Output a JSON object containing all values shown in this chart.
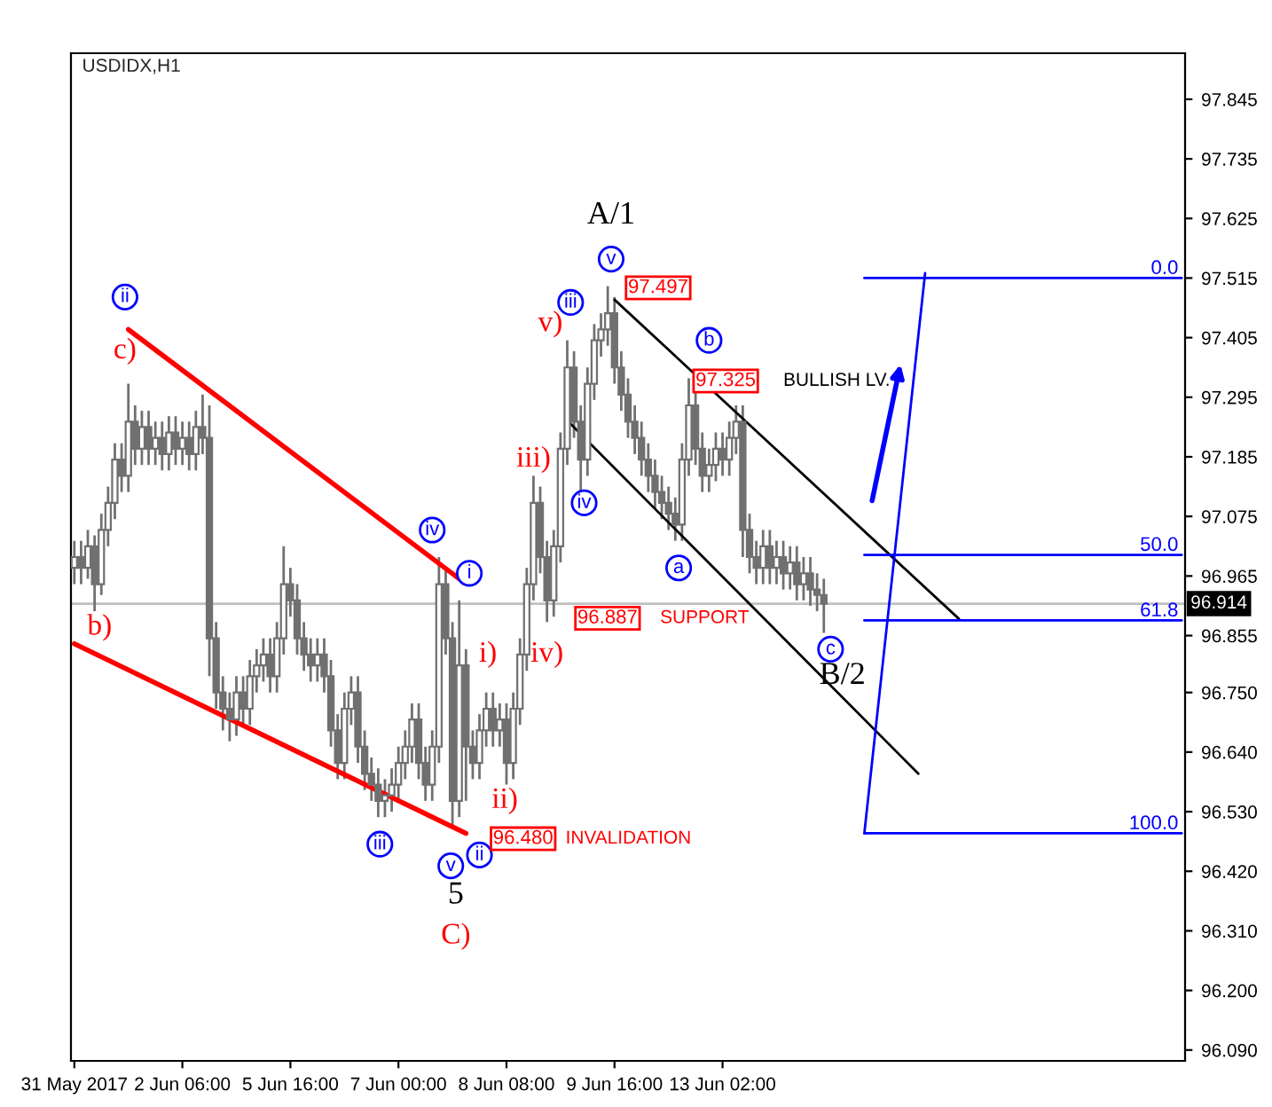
{
  "chart_data": {
    "type": "candlestick",
    "title": "USDIDX,H1",
    "color": "#707070",
    "categories": [
      "31 May 2017",
      null,
      null,
      null,
      null,
      null,
      null,
      null,
      null,
      null,
      null,
      null,
      null,
      null,
      null,
      null,
      "2 Jun 06:00",
      null,
      null,
      null,
      null,
      null,
      null,
      null,
      null,
      null,
      null,
      null,
      null,
      null,
      null,
      null,
      "5 Jun 16:00",
      null,
      null,
      null,
      null,
      null,
      null,
      null,
      null,
      null,
      null,
      null,
      null,
      null,
      null,
      null,
      "7 Jun 00:00",
      null,
      null,
      null,
      null,
      null,
      null,
      null,
      null,
      null,
      null,
      null,
      null,
      null,
      null,
      null,
      "8 Jun 08:00",
      null,
      null,
      null,
      null,
      null,
      null,
      null,
      null,
      null,
      null,
      null,
      null,
      null,
      null,
      null,
      "9 Jun 16:00",
      null,
      null,
      null,
      null,
      null,
      null,
      null,
      null,
      null,
      null,
      null,
      null,
      null,
      null,
      null,
      "13 Jun 02:00",
      null,
      null,
      null,
      null,
      null,
      null,
      null,
      null,
      null,
      null,
      null,
      null,
      null,
      null,
      null,
      null,
      null,
      null,
      null,
      null,
      null,
      null,
      null,
      null,
      null,
      null,
      null,
      null,
      null,
      null,
      null,
      null,
      null,
      null,
      null,
      null,
      null,
      null,
      null,
      null,
      null,
      null,
      null,
      null,
      null,
      null,
      null,
      null,
      null,
      null,
      null,
      null,
      null,
      null,
      null,
      null,
      null,
      null,
      null,
      null,
      null,
      null,
      null,
      null,
      null,
      null,
      null,
      null
    ],
    "ohlc": [
      [
        96.98,
        97.03,
        96.95,
        97.0
      ],
      [
        97.0,
        97.03,
        96.95,
        96.98
      ],
      [
        96.98,
        97.05,
        96.96,
        97.02
      ],
      [
        97.02,
        97.04,
        96.9,
        96.95
      ],
      [
        96.95,
        97.08,
        96.93,
        97.05
      ],
      [
        97.05,
        97.13,
        97.02,
        97.1
      ],
      [
        97.1,
        97.21,
        97.07,
        97.18
      ],
      [
        97.18,
        97.21,
        97.12,
        97.15
      ],
      [
        97.15,
        97.32,
        97.12,
        97.25
      ],
      [
        97.25,
        97.28,
        97.17,
        97.2
      ],
      [
        97.2,
        97.27,
        97.17,
        97.24
      ],
      [
        97.24,
        97.27,
        97.17,
        97.2
      ],
      [
        97.2,
        97.25,
        97.17,
        97.22
      ],
      [
        97.22,
        97.25,
        97.16,
        97.19
      ],
      [
        97.19,
        97.26,
        97.16,
        97.23
      ],
      [
        97.23,
        97.26,
        97.17,
        97.2
      ],
      [
        97.2,
        97.25,
        97.17,
        97.22
      ],
      [
        97.22,
        97.25,
        97.16,
        97.19
      ],
      [
        97.19,
        97.27,
        97.16,
        97.24
      ],
      [
        97.24,
        97.3,
        97.19,
        97.22
      ],
      [
        97.22,
        97.28,
        96.78,
        96.85
      ],
      [
        96.85,
        96.88,
        96.72,
        96.75
      ],
      [
        96.75,
        96.78,
        96.68,
        96.72
      ],
      [
        96.72,
        96.75,
        96.66,
        96.7
      ],
      [
        96.7,
        96.78,
        96.67,
        96.75
      ],
      [
        96.75,
        96.78,
        96.69,
        96.72
      ],
      [
        96.72,
        96.81,
        96.69,
        96.78
      ],
      [
        96.78,
        96.83,
        96.75,
        96.8
      ],
      [
        96.8,
        96.85,
        96.77,
        96.82
      ],
      [
        96.82,
        96.85,
        96.75,
        96.78
      ],
      [
        96.78,
        96.88,
        96.75,
        96.85
      ],
      [
        96.85,
        97.02,
        96.82,
        96.95
      ],
      [
        96.95,
        96.98,
        96.89,
        96.92
      ],
      [
        96.92,
        96.95,
        96.82,
        96.85
      ],
      [
        96.85,
        96.88,
        96.79,
        96.82
      ],
      [
        96.82,
        96.85,
        96.77,
        96.8
      ],
      [
        96.8,
        96.85,
        96.77,
        96.82
      ],
      [
        96.82,
        96.85,
        96.75,
        96.78
      ],
      [
        96.78,
        96.81,
        96.65,
        96.68
      ],
      [
        96.68,
        96.71,
        96.59,
        96.62
      ],
      [
        96.62,
        96.75,
        96.59,
        96.72
      ],
      [
        96.72,
        96.78,
        96.69,
        96.75
      ],
      [
        96.75,
        96.78,
        96.62,
        96.65
      ],
      [
        96.65,
        96.68,
        96.57,
        96.6
      ],
      [
        96.6,
        96.63,
        96.55,
        96.58
      ],
      [
        96.58,
        96.61,
        96.52,
        96.55
      ],
      [
        96.55,
        96.59,
        96.52,
        96.56
      ],
      [
        96.56,
        96.61,
        96.53,
        96.58
      ],
      [
        96.58,
        96.65,
        96.55,
        96.62
      ],
      [
        96.62,
        96.68,
        96.59,
        96.65
      ],
      [
        96.65,
        96.73,
        96.62,
        96.7
      ],
      [
        96.7,
        96.73,
        96.59,
        96.62
      ],
      [
        96.62,
        96.65,
        96.55,
        96.58
      ],
      [
        96.58,
        96.68,
        96.55,
        96.65
      ],
      [
        96.65,
        97.0,
        96.62,
        96.95
      ],
      [
        96.95,
        96.98,
        96.82,
        96.85
      ],
      [
        96.85,
        96.88,
        96.5,
        96.55
      ],
      [
        96.55,
        96.92,
        96.52,
        96.8
      ],
      [
        96.8,
        96.83,
        96.55,
        96.65
      ],
      [
        96.65,
        96.68,
        96.59,
        96.62
      ],
      [
        96.62,
        96.71,
        96.59,
        96.68
      ],
      [
        96.68,
        96.75,
        96.65,
        96.72
      ],
      [
        96.72,
        96.75,
        96.65,
        96.68
      ],
      [
        96.68,
        96.73,
        96.65,
        96.7
      ],
      [
        96.7,
        96.73,
        96.58,
        96.62
      ],
      [
        96.62,
        96.75,
        96.59,
        96.72
      ],
      [
        96.72,
        96.85,
        96.69,
        96.82
      ],
      [
        96.82,
        96.98,
        96.79,
        96.95
      ],
      [
        96.95,
        97.15,
        96.92,
        97.1
      ],
      [
        97.1,
        97.13,
        96.97,
        97.0
      ],
      [
        97.0,
        97.03,
        96.88,
        96.92
      ],
      [
        96.92,
        97.05,
        96.89,
        97.02
      ],
      [
        97.02,
        97.23,
        96.99,
        97.2
      ],
      [
        97.2,
        97.4,
        97.17,
        97.35
      ],
      [
        97.35,
        97.38,
        97.22,
        97.25
      ],
      [
        97.25,
        97.28,
        97.12,
        97.18
      ],
      [
        97.18,
        97.35,
        97.15,
        97.32
      ],
      [
        97.32,
        97.43,
        97.29,
        97.4
      ],
      [
        97.4,
        97.45,
        97.37,
        97.42
      ],
      [
        97.42,
        97.5,
        97.39,
        97.45
      ],
      [
        97.45,
        97.48,
        97.32,
        97.35
      ],
      [
        97.35,
        97.38,
        97.27,
        97.3
      ],
      [
        97.3,
        97.33,
        97.22,
        97.25
      ],
      [
        97.25,
        97.28,
        97.19,
        97.22
      ],
      [
        97.22,
        97.25,
        97.15,
        97.18
      ],
      [
        97.18,
        97.21,
        97.12,
        97.15
      ],
      [
        97.15,
        97.18,
        97.09,
        97.12
      ],
      [
        97.12,
        97.15,
        97.07,
        97.1
      ],
      [
        97.1,
        97.13,
        97.05,
        97.08
      ],
      [
        97.08,
        97.11,
        97.03,
        97.06
      ],
      [
        97.06,
        97.21,
        97.03,
        97.18
      ],
      [
        97.18,
        97.33,
        97.15,
        97.28
      ],
      [
        97.28,
        97.31,
        97.17,
        97.2
      ],
      [
        97.2,
        97.23,
        97.12,
        97.15
      ],
      [
        97.15,
        97.2,
        97.12,
        97.17
      ],
      [
        97.17,
        97.23,
        97.14,
        97.2
      ],
      [
        97.2,
        97.23,
        97.15,
        97.18
      ],
      [
        97.18,
        97.25,
        97.15,
        97.22
      ],
      [
        97.22,
        97.28,
        97.19,
        97.25
      ],
      [
        97.25,
        97.28,
        97.0,
        97.05
      ],
      [
        97.05,
        97.08,
        96.97,
        97.0
      ],
      [
        97.0,
        97.03,
        96.95,
        96.98
      ],
      [
        96.98,
        97.05,
        96.95,
        97.02
      ],
      [
        97.02,
        97.05,
        96.95,
        96.98
      ],
      [
        96.98,
        97.03,
        96.95,
        97.0
      ],
      [
        97.0,
        97.03,
        96.94,
        96.97
      ],
      [
        96.97,
        97.02,
        96.94,
        96.99
      ],
      [
        96.99,
        97.02,
        96.92,
        96.95
      ],
      [
        96.95,
        97.0,
        96.92,
        96.97
      ],
      [
        96.97,
        97.0,
        96.91,
        96.94
      ],
      [
        96.94,
        96.97,
        96.9,
        96.93
      ],
      [
        96.93,
        96.96,
        96.86,
        96.914
      ],
      null,
      null,
      null,
      null,
      null,
      null,
      null,
      null,
      null,
      null,
      null,
      null,
      null,
      null,
      null,
      null,
      null,
      null,
      null,
      null,
      null,
      null,
      null,
      null,
      null,
      null,
      null,
      null,
      null,
      null,
      null,
      null,
      null,
      null,
      null,
      null,
      null,
      null,
      null,
      null,
      null,
      null,
      null,
      null,
      null,
      null,
      null,
      null,
      null,
      null,
      null,
      null,
      null
    ],
    "ylim": [
      96.07,
      97.93
    ],
    "yticks": [
      97.845,
      97.735,
      97.625,
      97.515,
      97.405,
      97.295,
      97.185,
      97.075,
      96.965,
      96.855,
      {
        "value": 96.75,
        "label": "96.750"
      },
      {
        "value": 96.64,
        "label": "96.640"
      },
      {
        "value": 96.53,
        "label": "96.530"
      },
      {
        "value": 96.42,
        "label": "96.420"
      },
      {
        "value": 96.31,
        "label": "96.310"
      },
      {
        "value": 96.2,
        "label": "96.200"
      },
      {
        "value": 96.09,
        "label": "96.090"
      }
    ],
    "ref_lines": [
      {
        "axis": "y",
        "value": 96.914,
        "label": "96.914",
        "color": "#c0c0c0"
      }
    ],
    "series": [
      {
        "type": "line",
        "color": "#ff0000",
        "values": [
          null,
          null,
          null,
          null,
          null,
          null,
          null,
          null,
          97.42,
          null,
          null,
          null,
          null,
          null,
          null,
          null,
          null,
          null,
          null,
          null,
          null,
          null,
          null,
          null,
          null,
          null,
          null,
          null,
          null,
          null,
          null,
          null,
          null,
          null,
          null,
          null,
          null,
          null,
          null,
          null,
          null,
          null,
          null,
          null,
          null,
          null,
          null,
          null,
          null,
          null,
          null,
          null,
          null,
          null,
          null,
          null,
          null,
          96.96,
          null,
          null,
          null,
          null,
          null,
          null,
          null,
          null,
          null,
          null,
          null,
          null,
          null,
          null,
          null,
          null,
          null,
          null,
          null,
          null,
          null,
          null,
          null,
          null,
          null,
          null,
          null,
          null,
          null,
          null,
          null,
          null,
          null,
          null,
          null,
          null,
          null,
          null,
          null,
          null,
          null,
          null,
          null,
          null,
          null,
          null,
          null,
          null,
          null,
          null,
          null,
          null,
          null,
          null,
          null,
          null,
          null,
          null,
          null,
          null,
          null,
          null,
          null,
          null,
          null,
          null,
          null,
          null,
          null,
          null,
          null,
          null,
          null,
          null,
          null,
          null,
          null,
          null,
          null,
          null,
          null,
          null,
          null,
          null,
          null,
          null,
          null,
          null,
          null,
          null,
          null,
          null,
          null,
          null,
          null,
          null,
          null,
          null,
          null,
          null,
          null,
          null,
          null,
          null,
          null,
          null,
          null
        ]
      },
      {
        "type": "line",
        "color": "#ff0000",
        "values": [
          96.84,
          null,
          null,
          null,
          null,
          null,
          null,
          null,
          null,
          null,
          null,
          null,
          null,
          null,
          null,
          null,
          null,
          null,
          null,
          null,
          null,
          null,
          null,
          null,
          null,
          null,
          null,
          null,
          null,
          null,
          null,
          null,
          null,
          null,
          null,
          null,
          null,
          null,
          null,
          null,
          null,
          null,
          null,
          null,
          null,
          null,
          null,
          null,
          null,
          null,
          null,
          null,
          null,
          null,
          null,
          null,
          null,
          null,
          96.49,
          null,
          null,
          null,
          null,
          null,
          null,
          null,
          null,
          null,
          null,
          null,
          null,
          null,
          null,
          null,
          null,
          null,
          null,
          null,
          null,
          null,
          null,
          null,
          null,
          null,
          null,
          null,
          null,
          null,
          null,
          null,
          null,
          null,
          null,
          null,
          null,
          null,
          null,
          null,
          null,
          null,
          null,
          null,
          null,
          null,
          null,
          null,
          null,
          null,
          null,
          null,
          null,
          null,
          null,
          null,
          null,
          null,
          null,
          null,
          null,
          null,
          null,
          null,
          null,
          null,
          null,
          null,
          null,
          null,
          null,
          null,
          null,
          null,
          null,
          null,
          null,
          null,
          null,
          null,
          null,
          null,
          null,
          null,
          null,
          null,
          null,
          null,
          null,
          null,
          null,
          null,
          null,
          null,
          null,
          null,
          null,
          null,
          null,
          null,
          null,
          null,
          null,
          null,
          null,
          null,
          null
        ]
      },
      {
        "type": "line",
        "color": "#000000",
        "values": [
          null,
          null,
          null,
          null,
          null,
          null,
          null,
          null,
          null,
          null,
          null,
          null,
          null,
          null,
          null,
          null,
          null,
          null,
          null,
          null,
          null,
          null,
          null,
          null,
          null,
          null,
          null,
          null,
          null,
          null,
          null,
          null,
          null,
          null,
          null,
          null,
          null,
          null,
          null,
          null,
          null,
          null,
          null,
          null,
          null,
          null,
          null,
          null,
          null,
          null,
          null,
          null,
          null,
          null,
          null,
          null,
          null,
          null,
          null,
          null,
          null,
          null,
          null,
          null,
          null,
          null,
          null,
          null,
          null,
          null,
          null,
          null,
          null,
          null,
          null,
          null,
          null,
          null,
          null,
          null,
          97.475,
          null,
          null,
          null,
          null,
          null,
          null,
          null,
          null,
          null,
          null,
          null,
          null,
          null,
          null,
          null,
          null,
          null,
          null,
          null,
          null,
          null,
          null,
          null,
          null,
          null,
          null,
          null,
          null,
          null,
          null,
          null,
          null,
          null,
          null,
          null,
          null,
          null,
          null,
          null,
          null,
          null,
          null,
          null,
          null,
          null,
          null,
          null,
          null,
          null,
          null,
          96.886,
          null,
          null,
          null,
          null,
          null,
          null,
          null,
          null,
          null,
          null,
          null,
          null,
          null,
          null,
          null,
          null,
          null,
          null,
          null,
          null,
          null,
          null,
          null,
          null,
          null,
          null,
          null,
          null,
          null,
          null,
          null,
          null,
          null
        ]
      },
      {
        "type": "line",
        "color": "#000000",
        "values": [
          null,
          null,
          null,
          null,
          null,
          null,
          null,
          null,
          null,
          null,
          null,
          null,
          null,
          null,
          null,
          null,
          null,
          null,
          null,
          null,
          null,
          null,
          null,
          null,
          null,
          null,
          null,
          null,
          null,
          null,
          null,
          null,
          null,
          null,
          null,
          null,
          null,
          null,
          null,
          null,
          null,
          null,
          null,
          null,
          null,
          null,
          null,
          null,
          null,
          null,
          null,
          null,
          null,
          null,
          null,
          null,
          null,
          null,
          null,
          null,
          null,
          null,
          null,
          null,
          null,
          null,
          null,
          null,
          null,
          null,
          null,
          null,
          null,
          97.252,
          null,
          null,
          null,
          null,
          null,
          null,
          null,
          null,
          null,
          null,
          null,
          null,
          null,
          null,
          null,
          null,
          null,
          null,
          null,
          null,
          null,
          null,
          null,
          null,
          null,
          null,
          null,
          null,
          null,
          null,
          null,
          null,
          null,
          null,
          null,
          null,
          null,
          null,
          null,
          null,
          null,
          null,
          null,
          null,
          null,
          null,
          null,
          null,
          null,
          null,
          null,
          96.6,
          null,
          null,
          null,
          null,
          null,
          null,
          null,
          null,
          null,
          null,
          null,
          null,
          null,
          null,
          null,
          null,
          null,
          null,
          null,
          null,
          null,
          null,
          null,
          null,
          null,
          null,
          null,
          null,
          null,
          null,
          null,
          null,
          null,
          null,
          null,
          null,
          null,
          null,
          null
        ]
      },
      {
        "type": "line",
        "color": "#0000ff",
        "values": [
          null,
          null,
          null,
          null,
          null,
          null,
          null,
          null,
          null,
          null,
          null,
          null,
          null,
          null,
          null,
          null,
          null,
          null,
          null,
          null,
          null,
          null,
          null,
          null,
          null,
          null,
          null,
          null,
          null,
          null,
          null,
          null,
          null,
          null,
          null,
          null,
          null,
          null,
          null,
          null,
          null,
          null,
          null,
          null,
          null,
          null,
          null,
          null,
          null,
          null,
          null,
          null,
          null,
          null,
          null,
          null,
          null,
          null,
          null,
          null,
          null,
          null,
          null,
          null,
          null,
          null,
          null,
          null,
          null,
          null,
          null,
          null,
          null,
          null,
          null,
          null,
          null,
          null,
          null,
          null,
          null,
          null,
          null,
          null,
          null,
          null,
          null,
          null,
          null,
          null,
          null,
          null,
          null,
          null,
          null,
          null,
          null,
          null,
          null,
          null,
          null,
          null,
          null,
          null,
          null,
          null,
          null,
          null,
          null,
          null,
          null,
          null,
          null,
          null,
          null,
          null,
          null,
          96.49,
          null,
          null,
          null,
          null,
          null,
          null,
          null,
          null,
          97.524,
          null,
          null,
          null,
          null,
          null,
          null,
          null,
          null,
          null,
          null,
          null,
          null,
          null,
          null,
          null,
          null,
          null,
          null,
          null,
          null,
          null,
          null,
          null,
          null,
          null,
          null,
          null,
          null,
          null,
          null,
          null,
          null,
          null,
          null,
          null,
          null,
          null,
          null
        ]
      },
      {
        "type": "line",
        "color": "#0000ff",
        "name": "0.0",
        "values": [
          null,
          null,
          null,
          null,
          null,
          null,
          null,
          null,
          null,
          null,
          null,
          null,
          null,
          null,
          null,
          null,
          null,
          null,
          null,
          null,
          null,
          null,
          null,
          null,
          null,
          null,
          null,
          null,
          null,
          null,
          null,
          null,
          null,
          null,
          null,
          null,
          null,
          null,
          null,
          null,
          null,
          null,
          null,
          null,
          null,
          null,
          null,
          null,
          null,
          null,
          null,
          null,
          null,
          null,
          null,
          null,
          null,
          null,
          null,
          null,
          null,
          null,
          null,
          null,
          null,
          null,
          null,
          null,
          null,
          null,
          null,
          null,
          null,
          null,
          null,
          null,
          null,
          null,
          null,
          null,
          null,
          null,
          null,
          null,
          null,
          null,
          null,
          null,
          null,
          null,
          null,
          null,
          null,
          null,
          null,
          null,
          null,
          null,
          null,
          null,
          null,
          null,
          null,
          null,
          null,
          null,
          null,
          null,
          null,
          null,
          null,
          null,
          null,
          null,
          null,
          null,
          null,
          97.515,
          null,
          null,
          null,
          null,
          null,
          null,
          null,
          null,
          null,
          null,
          null,
          null,
          null,
          null,
          null,
          null,
          null,
          null,
          null,
          null,
          null,
          null,
          null,
          null,
          null,
          null,
          null,
          null,
          null,
          null,
          null,
          null,
          null,
          null,
          null,
          null,
          null,
          null,
          null,
          null,
          null,
          null,
          null,
          null,
          null,
          null,
          97.515
        ]
      },
      {
        "type": "line",
        "color": "#0000ff",
        "name": "50.0",
        "values": [
          null,
          null,
          null,
          null,
          null,
          null,
          null,
          null,
          null,
          null,
          null,
          null,
          null,
          null,
          null,
          null,
          null,
          null,
          null,
          null,
          null,
          null,
          null,
          null,
          null,
          null,
          null,
          null,
          null,
          null,
          null,
          null,
          null,
          null,
          null,
          null,
          null,
          null,
          null,
          null,
          null,
          null,
          null,
          null,
          null,
          null,
          null,
          null,
          null,
          null,
          null,
          null,
          null,
          null,
          null,
          null,
          null,
          null,
          null,
          null,
          null,
          null,
          null,
          null,
          null,
          null,
          null,
          null,
          null,
          null,
          null,
          null,
          null,
          null,
          null,
          null,
          null,
          null,
          null,
          null,
          null,
          null,
          null,
          null,
          null,
          null,
          null,
          null,
          null,
          null,
          null,
          null,
          null,
          null,
          null,
          null,
          null,
          null,
          null,
          null,
          null,
          null,
          null,
          null,
          null,
          null,
          null,
          null,
          null,
          null,
          null,
          null,
          null,
          null,
          null,
          null,
          null,
          97.004,
          null,
          null,
          null,
          null,
          null,
          null,
          null,
          null,
          null,
          null,
          null,
          null,
          null,
          null,
          null,
          null,
          null,
          null,
          null,
          null,
          null,
          null,
          null,
          null,
          null,
          null,
          null,
          null,
          null,
          null,
          null,
          null,
          null,
          null,
          null,
          null,
          null,
          null,
          null,
          null,
          null,
          null,
          null,
          null,
          null,
          null,
          97.004
        ]
      },
      {
        "type": "line",
        "color": "#0000ff",
        "name": "61.8",
        "values": [
          null,
          null,
          null,
          null,
          null,
          null,
          null,
          null,
          null,
          null,
          null,
          null,
          null,
          null,
          null,
          null,
          null,
          null,
          null,
          null,
          null,
          null,
          null,
          null,
          null,
          null,
          null,
          null,
          null,
          null,
          null,
          null,
          null,
          null,
          null,
          null,
          null,
          null,
          null,
          null,
          null,
          null,
          null,
          null,
          null,
          null,
          null,
          null,
          null,
          null,
          null,
          null,
          null,
          null,
          null,
          null,
          null,
          null,
          null,
          null,
          null,
          null,
          null,
          null,
          null,
          null,
          null,
          null,
          null,
          null,
          null,
          null,
          null,
          null,
          null,
          null,
          null,
          null,
          null,
          null,
          null,
          null,
          null,
          null,
          null,
          null,
          null,
          null,
          null,
          null,
          null,
          null,
          null,
          null,
          null,
          null,
          null,
          null,
          null,
          null,
          null,
          null,
          null,
          null,
          null,
          null,
          null,
          null,
          null,
          null,
          null,
          null,
          null,
          null,
          null,
          null,
          null,
          96.883,
          null,
          null,
          null,
          null,
          null,
          null,
          null,
          null,
          null,
          null,
          null,
          null,
          null,
          null,
          null,
          null,
          null,
          null,
          null,
          null,
          null,
          null,
          null,
          null,
          null,
          null,
          null,
          null,
          null,
          null,
          null,
          null,
          null,
          null,
          null,
          null,
          null,
          null,
          null,
          null,
          null,
          null,
          null,
          null,
          null,
          null,
          96.883
        ]
      },
      {
        "type": "line",
        "color": "#0000ff",
        "name": "100.0",
        "values": [
          null,
          null,
          null,
          null,
          null,
          null,
          null,
          null,
          null,
          null,
          null,
          null,
          null,
          null,
          null,
          null,
          null,
          null,
          null,
          null,
          null,
          null,
          null,
          null,
          null,
          null,
          null,
          null,
          null,
          null,
          null,
          null,
          null,
          null,
          null,
          null,
          null,
          null,
          null,
          null,
          null,
          null,
          null,
          null,
          null,
          null,
          null,
          null,
          null,
          null,
          null,
          null,
          null,
          null,
          null,
          null,
          null,
          null,
          null,
          null,
          null,
          null,
          null,
          null,
          null,
          null,
          null,
          null,
          null,
          null,
          null,
          null,
          null,
          null,
          null,
          null,
          null,
          null,
          null,
          null,
          null,
          null,
          null,
          null,
          null,
          null,
          null,
          null,
          null,
          null,
          null,
          null,
          null,
          null,
          null,
          null,
          null,
          null,
          null,
          null,
          null,
          null,
          null,
          null,
          null,
          null,
          null,
          null,
          null,
          null,
          null,
          null,
          null,
          null,
          null,
          null,
          null,
          96.49,
          null,
          null,
          null,
          null,
          null,
          null,
          null,
          null,
          null,
          null,
          null,
          null,
          null,
          null,
          null,
          null,
          null,
          null,
          null,
          null,
          null,
          null,
          null,
          null,
          null,
          null,
          null,
          null,
          null,
          null,
          null,
          null,
          null,
          null,
          null,
          null,
          null,
          null,
          null,
          null,
          null,
          null,
          null,
          null,
          null,
          null,
          96.49
        ]
      }
    ],
    "annotations": [
      "b)",
      "c)",
      "ii",
      "iv",
      {
        "text": "i",
        "y": 96.92
      },
      "iii",
      "v",
      "ii",
      "5",
      "C)",
      {
        "text": "i)",
        "y": 96.75
      },
      "ii)",
      "iii)",
      "iv)",
      "v)",
      "iii",
      "iv",
      "v",
      "A/1",
      {
        "text": "a",
        "y": 97.03
      },
      "b",
      "c",
      "B/2",
      {
        "text": "97.497",
        "y": 97.497
      },
      "97.325",
      "96.887",
      "96.480",
      "BULLISH LV.",
      "SUPPORT",
      "INVALIDATION"
    ]
  }
}
